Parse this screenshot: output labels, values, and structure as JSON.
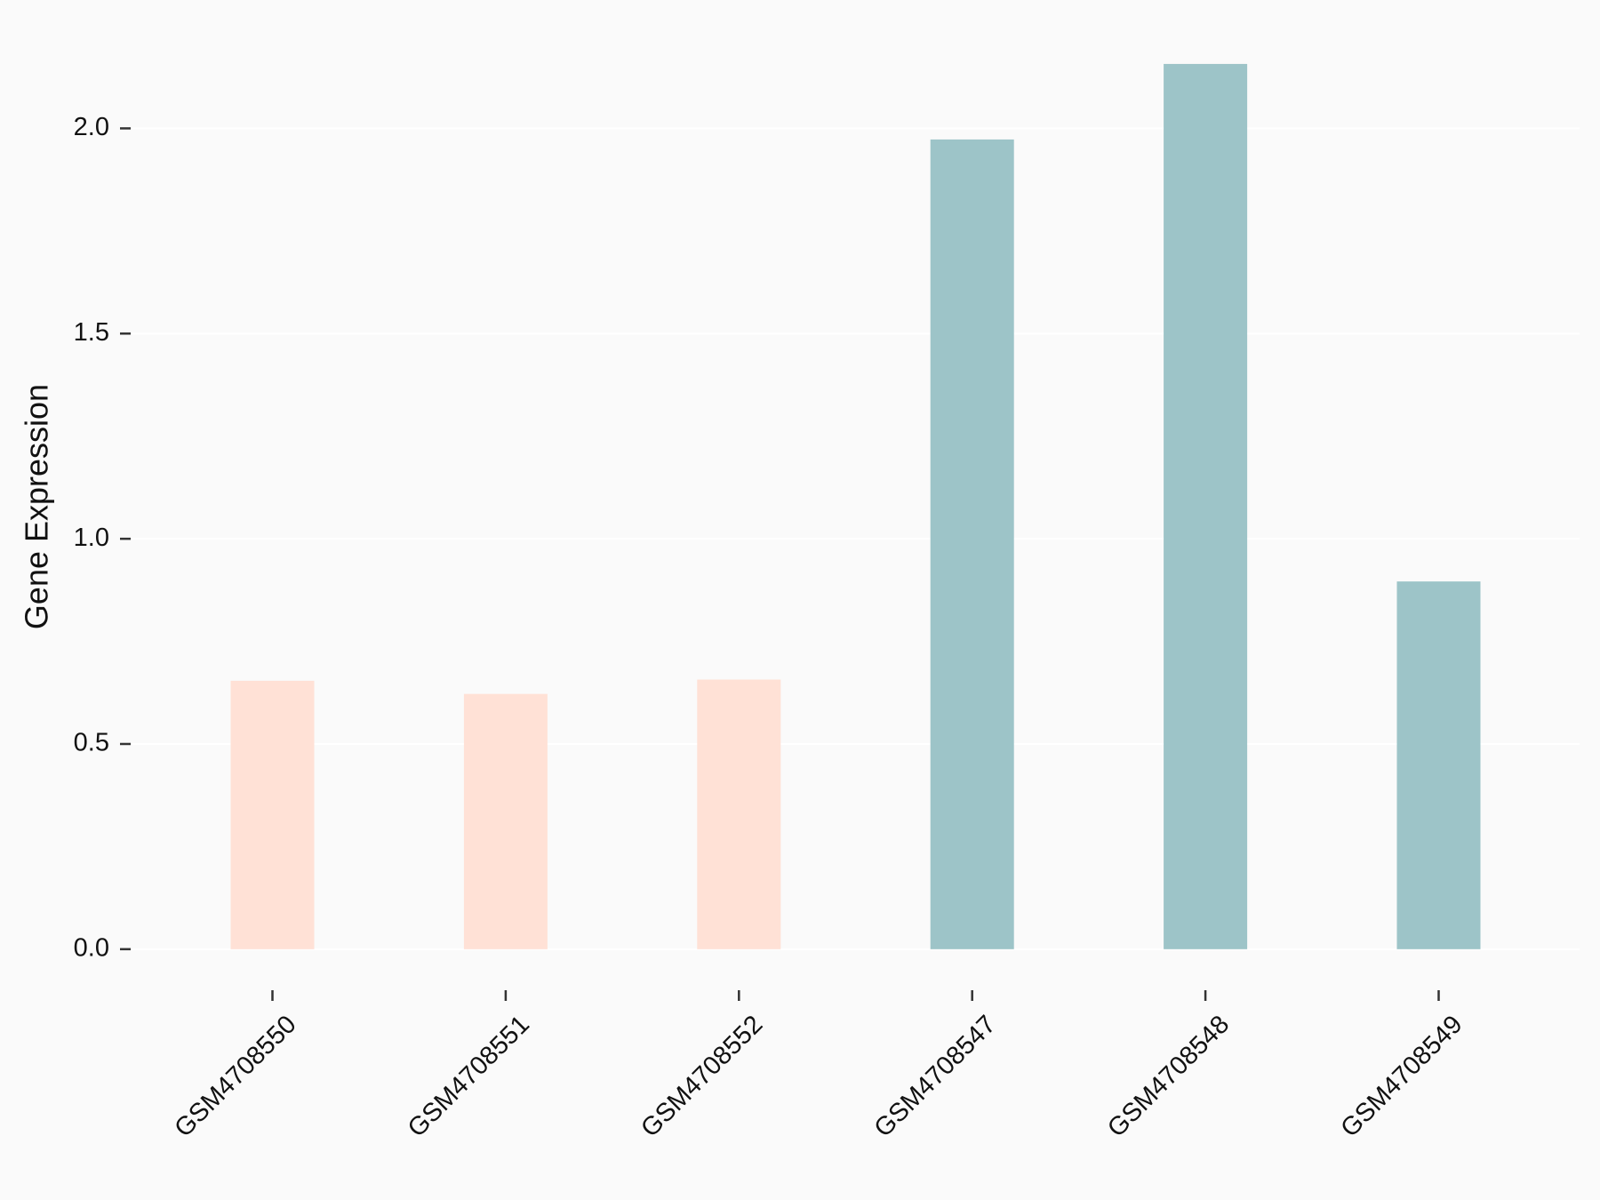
{
  "chart_data": {
    "type": "bar",
    "y_label": "Gene Expression",
    "categories": [
      "GSM4708550",
      "GSM4708551",
      "GSM4708552",
      "GSM4708547",
      "GSM4708548",
      "GSM4708549"
    ],
    "values": [
      0.654,
      0.622,
      0.657,
      1.973,
      2.157,
      0.896
    ],
    "colors": [
      "#ffe1d6",
      "#ffe1d6",
      "#ffe1d6",
      "#9dc4c8",
      "#9dc4c8",
      "#9dc4c8"
    ],
    "ylim": [
      -0.1,
      2.25
    ],
    "yticks": [
      {
        "value": 0,
        "label": "0.0"
      },
      {
        "value": 0.5,
        "label": "0.5"
      },
      {
        "value": 1,
        "label": "1.0"
      },
      {
        "value": 1.5,
        "label": "1.5"
      },
      {
        "value": 2,
        "label": "2.0"
      }
    ],
    "grid": true
  }
}
